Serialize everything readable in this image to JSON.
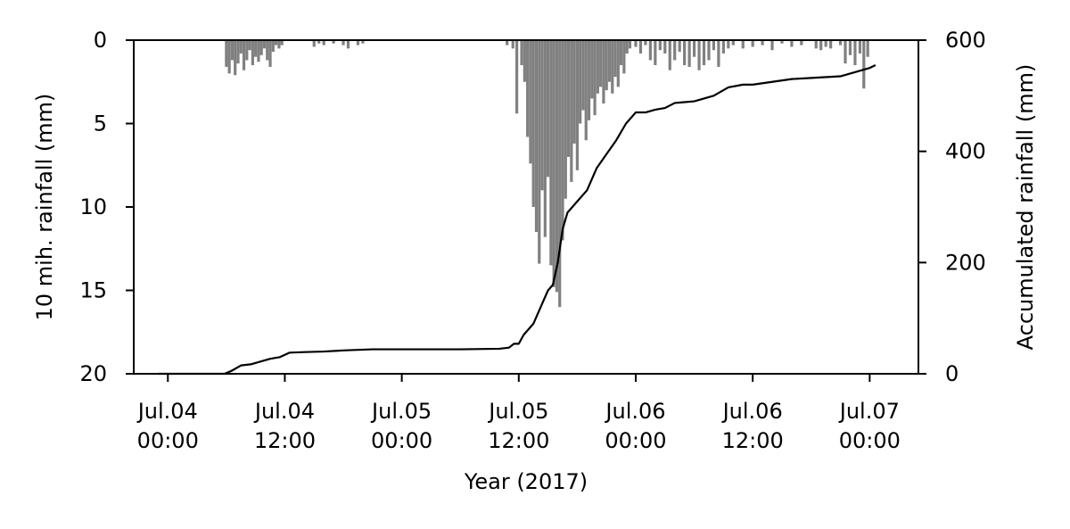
{
  "chart_data": {
    "type": "bar",
    "xlabel": "Year (2017)",
    "ylabel_left": "10 mih. rainfall (mm)",
    "ylabel_right": "Accumulated rainfall (mm)",
    "x_range_hours": [
      -3.5,
      77.0
    ],
    "x_ticks": [
      {
        "line1": "Jul.04",
        "line2": "00:00",
        "hour": 0
      },
      {
        "line1": "Jul.04",
        "line2": "12:00",
        "hour": 12
      },
      {
        "line1": "Jul.05",
        "line2": "00:00",
        "hour": 24
      },
      {
        "line1": "Jul.05",
        "line2": "12:00",
        "hour": 36
      },
      {
        "line1": "Jul.06",
        "line2": "00:00",
        "hour": 48
      },
      {
        "line1": "Jul.06",
        "line2": "12:00",
        "hour": 60
      },
      {
        "line1": "Jul.07",
        "line2": "00:00",
        "hour": 72
      }
    ],
    "left_axis": {
      "range": [
        20,
        0
      ],
      "inverted": true,
      "ticks": [
        "0",
        "5",
        "10",
        "15",
        "20"
      ],
      "tick_values": [
        0,
        5,
        10,
        15,
        20
      ]
    },
    "right_axis": {
      "range": [
        0,
        600
      ],
      "ticks": [
        "0",
        "200",
        "400",
        "600"
      ],
      "tick_values": [
        0,
        200,
        400,
        600
      ]
    },
    "series": [
      {
        "kind": "bars",
        "axis": "left",
        "color": "#808080",
        "note_x_unit": "hours after Jul.04 00:00 (2017)",
        "points": [
          [
            6.0,
            1.6
          ],
          [
            6.3,
            2.0
          ],
          [
            6.6,
            1.2
          ],
          [
            6.9,
            2.1
          ],
          [
            7.2,
            1.4
          ],
          [
            7.5,
            0.8
          ],
          [
            7.8,
            1.8
          ],
          [
            8.1,
            1.2
          ],
          [
            8.4,
            0.6
          ],
          [
            8.7,
            1.5
          ],
          [
            9.0,
            1.0
          ],
          [
            9.3,
            1.3
          ],
          [
            9.6,
            0.9
          ],
          [
            9.9,
            0.5
          ],
          [
            10.2,
            1.2
          ],
          [
            10.5,
            1.6
          ],
          [
            10.8,
            0.7
          ],
          [
            11.1,
            0.3
          ],
          [
            11.4,
            0.5
          ],
          [
            11.7,
            0.3
          ],
          [
            15.0,
            0.4
          ],
          [
            15.5,
            0.2
          ],
          [
            16.0,
            0.3
          ],
          [
            17.0,
            0.2
          ],
          [
            18.0,
            0.3
          ],
          [
            18.5,
            0.5
          ],
          [
            19.5,
            0.3
          ],
          [
            20.0,
            0.2
          ],
          [
            34.8,
            0.3
          ],
          [
            35.4,
            0.5
          ],
          [
            35.8,
            4.4
          ],
          [
            36.3,
            1.5
          ],
          [
            36.6,
            2.5
          ],
          [
            36.9,
            5.8
          ],
          [
            37.2,
            7.4
          ],
          [
            37.5,
            10.0
          ],
          [
            37.8,
            11.5
          ],
          [
            38.1,
            13.4
          ],
          [
            38.4,
            9.0
          ],
          [
            38.7,
            11.8
          ],
          [
            39.0,
            8.2
          ],
          [
            39.3,
            13.5
          ],
          [
            39.6,
            14.8
          ],
          [
            39.9,
            15.1
          ],
          [
            40.2,
            16.0
          ],
          [
            40.5,
            12.0
          ],
          [
            40.8,
            9.5
          ],
          [
            41.1,
            7.0
          ],
          [
            41.4,
            8.5
          ],
          [
            41.7,
            6.2
          ],
          [
            42.0,
            7.8
          ],
          [
            42.3,
            5.0
          ],
          [
            42.6,
            4.2
          ],
          [
            42.9,
            6.0
          ],
          [
            43.2,
            4.8
          ],
          [
            43.5,
            3.5
          ],
          [
            43.8,
            4.5
          ],
          [
            44.1,
            3.2
          ],
          [
            44.4,
            2.8
          ],
          [
            44.7,
            3.8
          ],
          [
            45.0,
            3.0
          ],
          [
            45.3,
            2.5
          ],
          [
            45.6,
            3.2
          ],
          [
            45.9,
            2.2
          ],
          [
            46.2,
            2.8
          ],
          [
            46.5,
            1.5
          ],
          [
            46.8,
            2.0
          ],
          [
            47.1,
            0.8
          ],
          [
            47.4,
            0.5
          ],
          [
            48.0,
            0.4
          ],
          [
            48.5,
            0.8
          ],
          [
            49.0,
            0.3
          ],
          [
            49.5,
            1.2
          ],
          [
            50.0,
            1.5
          ],
          [
            50.5,
            0.6
          ],
          [
            51.0,
            0.8
          ],
          [
            51.5,
            1.8
          ],
          [
            52.0,
            1.2
          ],
          [
            52.5,
            0.7
          ],
          [
            53.0,
            1.5
          ],
          [
            53.5,
            1.6
          ],
          [
            54.0,
            1.0
          ],
          [
            54.5,
            1.8
          ],
          [
            55.0,
            1.5
          ],
          [
            55.5,
            1.2
          ],
          [
            56.0,
            0.6
          ],
          [
            56.5,
            1.6
          ],
          [
            57.0,
            0.8
          ],
          [
            57.5,
            0.5
          ],
          [
            58.0,
            0.3
          ],
          [
            59.0,
            0.5
          ],
          [
            60.0,
            0.4
          ],
          [
            61.0,
            0.3
          ],
          [
            62.0,
            0.6
          ],
          [
            63.0,
            0.2
          ],
          [
            64.0,
            0.4
          ],
          [
            65.0,
            0.3
          ],
          [
            66.5,
            0.5
          ],
          [
            67.0,
            0.6
          ],
          [
            67.5,
            0.4
          ],
          [
            68.0,
            0.5
          ],
          [
            69.0,
            0.3
          ],
          [
            69.5,
            1.4
          ],
          [
            70.0,
            0.9
          ],
          [
            70.5,
            1.5
          ],
          [
            71.0,
            0.8
          ],
          [
            71.4,
            2.9
          ],
          [
            71.8,
            1.0
          ]
        ]
      },
      {
        "kind": "line",
        "axis": "right",
        "color": "#000000",
        "points": [
          [
            -1.0,
            0
          ],
          [
            5.8,
            0
          ],
          [
            6.5,
            5
          ],
          [
            7.5,
            15
          ],
          [
            8.5,
            17
          ],
          [
            9.5,
            22
          ],
          [
            10.5,
            27
          ],
          [
            11.5,
            30
          ],
          [
            12.5,
            38
          ],
          [
            14.0,
            39
          ],
          [
            16.0,
            40
          ],
          [
            18.0,
            42
          ],
          [
            21.0,
            44
          ],
          [
            24.0,
            44
          ],
          [
            30.0,
            44
          ],
          [
            34.0,
            45
          ],
          [
            35.0,
            47
          ],
          [
            35.5,
            54
          ],
          [
            36.0,
            54
          ],
          [
            36.5,
            70
          ],
          [
            37.0,
            80
          ],
          [
            37.5,
            90
          ],
          [
            38.0,
            110
          ],
          [
            38.5,
            130
          ],
          [
            39.0,
            150
          ],
          [
            39.5,
            160
          ],
          [
            40.0,
            200
          ],
          [
            40.5,
            260
          ],
          [
            41.0,
            290
          ],
          [
            42.0,
            310
          ],
          [
            43.0,
            330
          ],
          [
            44.0,
            370
          ],
          [
            45.0,
            395
          ],
          [
            46.0,
            420
          ],
          [
            47.0,
            450
          ],
          [
            48.0,
            470
          ],
          [
            49.0,
            470
          ],
          [
            50.0,
            475
          ],
          [
            51.0,
            478
          ],
          [
            52.0,
            487
          ],
          [
            54.0,
            490
          ],
          [
            56.0,
            500
          ],
          [
            57.5,
            515
          ],
          [
            59.0,
            520
          ],
          [
            60.0,
            520
          ],
          [
            62.0,
            525
          ],
          [
            64.0,
            530
          ],
          [
            66.0,
            532
          ],
          [
            69.0,
            535
          ],
          [
            70.0,
            540
          ],
          [
            71.0,
            545
          ],
          [
            72.0,
            550
          ],
          [
            72.6,
            555
          ]
        ]
      }
    ]
  }
}
